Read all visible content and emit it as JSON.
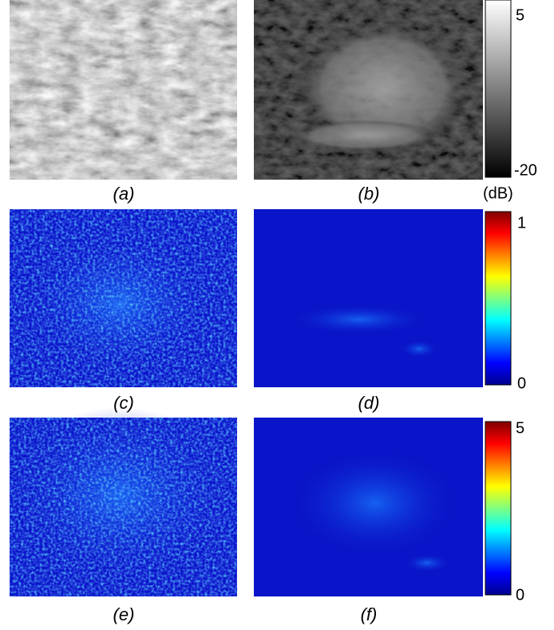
{
  "panels": [
    {
      "label": "(a)"
    },
    {
      "label": "(b)"
    },
    {
      "label": "(c)"
    },
    {
      "label": "(d)"
    },
    {
      "label": "(e)"
    },
    {
      "label": "(f)"
    }
  ],
  "colorbars": [
    {
      "max": "5",
      "min": "-20",
      "unit": "(dB)"
    },
    {
      "max": "1",
      "min": "0"
    },
    {
      "max": "5",
      "min": "0"
    }
  ]
}
